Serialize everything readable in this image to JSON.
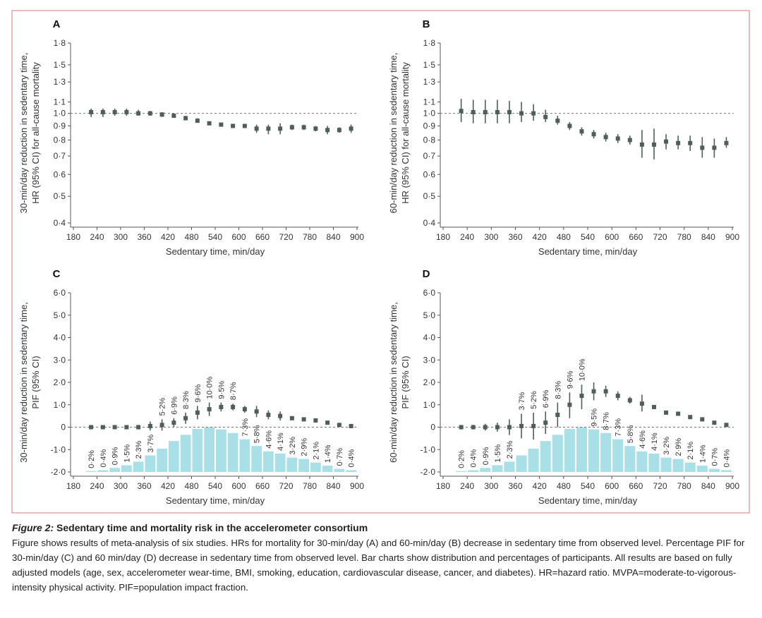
{
  "chart_data": [
    {
      "type": "errorbar",
      "title": "A",
      "xlabel": "Sedentary time, min/day",
      "ylabel": [
        "30-min/day reduction in sedentary time,",
        "HR (95% CI) for all-cause mortality"
      ],
      "x": [
        225,
        255,
        285,
        315,
        345,
        375,
        405,
        435,
        465,
        495,
        525,
        555,
        585,
        615,
        645,
        675,
        705,
        735,
        765,
        795,
        825,
        855,
        885
      ],
      "series": [
        {
          "color": "#4f5e5a",
          "values": [
            1.01,
            1.01,
            1.01,
            1.01,
            1.0,
            1.0,
            0.99,
            0.98,
            0.96,
            0.94,
            0.92,
            0.91,
            0.9,
            0.9,
            0.88,
            0.88,
            0.88,
            0.89,
            0.89,
            0.88,
            0.87,
            0.87,
            0.88
          ],
          "lower": [
            0.97,
            0.97,
            0.98,
            0.98,
            0.98,
            0.98,
            0.97,
            0.97,
            0.95,
            0.93,
            0.91,
            0.9,
            0.89,
            0.89,
            0.85,
            0.84,
            0.84,
            0.87,
            0.87,
            0.86,
            0.84,
            0.85,
            0.85
          ],
          "upper": [
            1.04,
            1.04,
            1.04,
            1.04,
            1.03,
            1.02,
            1.01,
            1.0,
            0.98,
            0.96,
            0.93,
            0.92,
            0.91,
            0.91,
            0.91,
            0.91,
            0.92,
            0.91,
            0.91,
            0.9,
            0.9,
            0.89,
            0.91
          ]
        }
      ],
      "xlim": [
        180,
        900
      ],
      "xticks": [
        180,
        240,
        300,
        360,
        420,
        480,
        540,
        600,
        660,
        720,
        780,
        840,
        900
      ],
      "ylim": [
        0.4,
        1.8
      ],
      "log_y": true,
      "reference_line": 1,
      "yticks": [
        {
          "value": 0.4,
          "label": "0·4"
        },
        {
          "value": 0.5,
          "label": "0·5"
        },
        {
          "value": 0.6,
          "label": "0·6"
        },
        {
          "value": 0.7,
          "label": "0·7"
        },
        {
          "value": 0.8,
          "label": "0·8"
        },
        {
          "value": 0.9,
          "label": "0·9"
        },
        {
          "value": 1,
          "label": "1·0"
        },
        {
          "value": 1.1,
          "label": "1·1"
        },
        {
          "value": 1.3,
          "label": "1·3"
        },
        {
          "value": 1.5,
          "label": "1·5"
        },
        {
          "value": 1.8,
          "label": "1·8"
        }
      ]
    },
    {
      "type": "errorbar",
      "title": "B",
      "xlabel": "Sedentary time, min/day",
      "ylabel": [
        "60-min/day reduction in sedentary time,",
        "HR (95% CI) for all-cause mortality"
      ],
      "x": [
        225,
        255,
        285,
        315,
        345,
        375,
        405,
        435,
        465,
        495,
        525,
        555,
        585,
        615,
        645,
        675,
        705,
        735,
        765,
        795,
        825,
        855,
        885
      ],
      "series": [
        {
          "color": "#4f5e5a",
          "values": [
            1.02,
            1.01,
            1.01,
            1.01,
            1.01,
            1.0,
            1.0,
            0.97,
            0.94,
            0.9,
            0.86,
            0.84,
            0.82,
            0.81,
            0.8,
            0.77,
            0.77,
            0.79,
            0.78,
            0.78,
            0.75,
            0.75,
            0.78
          ],
          "lower": [
            0.93,
            0.92,
            0.92,
            0.92,
            0.92,
            0.93,
            0.94,
            0.93,
            0.91,
            0.87,
            0.83,
            0.81,
            0.79,
            0.78,
            0.77,
            0.69,
            0.68,
            0.74,
            0.74,
            0.73,
            0.69,
            0.69,
            0.75
          ],
          "upper": [
            1.13,
            1.12,
            1.12,
            1.12,
            1.11,
            1.1,
            1.08,
            1.03,
            0.98,
            0.93,
            0.89,
            0.87,
            0.85,
            0.84,
            0.83,
            0.87,
            0.88,
            0.84,
            0.83,
            0.83,
            0.82,
            0.81,
            0.82
          ]
        }
      ],
      "xlim": [
        180,
        900
      ],
      "xticks": [
        180,
        240,
        300,
        360,
        420,
        480,
        540,
        600,
        660,
        720,
        780,
        840,
        900
      ],
      "ylim": [
        0.4,
        1.8
      ],
      "log_y": true,
      "reference_line": 1,
      "yticks": [
        {
          "value": 0.4,
          "label": "0·4"
        },
        {
          "value": 0.5,
          "label": "0·5"
        },
        {
          "value": 0.6,
          "label": "0·6"
        },
        {
          "value": 0.7,
          "label": "0·7"
        },
        {
          "value": 0.8,
          "label": "0·8"
        },
        {
          "value": 0.9,
          "label": "0·9"
        },
        {
          "value": 1,
          "label": "1·0"
        },
        {
          "value": 1.1,
          "label": "1·1"
        },
        {
          "value": 1.3,
          "label": "1·3"
        },
        {
          "value": 1.5,
          "label": "1·5"
        },
        {
          "value": 1.8,
          "label": "1·8"
        }
      ]
    },
    {
      "type": "combo",
      "title": "C",
      "xlabel": "Sedentary time, min/day",
      "ylabel": [
        "30-min/day reduction in sedentary time,",
        "PIF (95% CI)"
      ],
      "x": [
        225,
        255,
        285,
        315,
        345,
        375,
        405,
        435,
        465,
        495,
        525,
        555,
        585,
        615,
        645,
        675,
        705,
        735,
        765,
        795,
        825,
        855,
        885
      ],
      "series": [
        {
          "color": "#4f5e5a",
          "values": [
            0,
            0,
            0,
            0,
            0,
            0.05,
            0.1,
            0.2,
            0.4,
            0.65,
            0.8,
            0.9,
            0.9,
            0.8,
            0.7,
            0.55,
            0.5,
            0.4,
            0.35,
            0.3,
            0.2,
            0.1,
            0.05
          ],
          "lower": [
            -0.05,
            -0.05,
            -0.05,
            -0.05,
            -0.1,
            -0.15,
            -0.15,
            0,
            0.15,
            0.35,
            0.5,
            0.7,
            0.75,
            0.65,
            0.45,
            0.35,
            0.3,
            0.35,
            0.3,
            0.25,
            0.15,
            0.05,
            0
          ],
          "upper": [
            0.05,
            0.05,
            0.05,
            0.05,
            0.1,
            0.25,
            0.35,
            0.4,
            0.65,
            0.95,
            1.1,
            1.1,
            1.05,
            0.95,
            0.95,
            0.75,
            0.7,
            0.45,
            0.4,
            0.35,
            0.25,
            0.15,
            0.1
          ]
        }
      ],
      "bars": {
        "color": "#a9dfe7",
        "axis": "y2",
        "values": [
          0.2,
          0.4,
          0.9,
          1.5,
          2.3,
          3.7,
          5.2,
          6.9,
          8.3,
          9.6,
          10.0,
          9.5,
          8.7,
          7.3,
          5.8,
          4.6,
          4.1,
          3.2,
          2.9,
          2.1,
          1.4,
          0.7,
          0.4
        ],
        "value_labels": [
          "0·2%",
          "0·4%",
          "0·9%",
          "1·5%",
          "2·3%",
          "3·7%",
          "5·2%",
          "6·9%",
          "8·3%",
          "9·6%",
          "10·0%",
          "9·5%",
          "8·7%",
          "7·3%",
          "5·8%",
          "4·6%",
          "4·1%",
          "3·2%",
          "2·9%",
          "2·1%",
          "1·4%",
          "0·7%",
          "0·4%"
        ]
      },
      "y2lim": [
        0,
        40
      ],
      "xlim": [
        180,
        900
      ],
      "xticks": [
        180,
        240,
        300,
        360,
        420,
        480,
        540,
        600,
        660,
        720,
        780,
        840,
        900
      ],
      "ylim": [
        -2,
        6
      ],
      "reference_line": 0,
      "yticks": [
        {
          "value": -2,
          "label": "-2·0"
        },
        {
          "value": -1,
          "label": "-1·0"
        },
        0,
        {
          "value": 1,
          "label": "1·0"
        },
        {
          "value": 2,
          "label": "2·0"
        },
        {
          "value": 3,
          "label": "3·0"
        },
        {
          "value": 4,
          "label": "4·0"
        },
        {
          "value": 5,
          "label": "5·0"
        },
        {
          "value": 6,
          "label": "6·0"
        }
      ]
    },
    {
      "type": "combo",
      "title": "D",
      "xlabel": "Sedentary time, min/day",
      "ylabel": [
        "60-min/day reduction in sedentary time,",
        "PIF (95% CI)"
      ],
      "x": [
        225,
        255,
        285,
        315,
        345,
        375,
        405,
        435,
        465,
        495,
        525,
        555,
        585,
        615,
        645,
        675,
        705,
        735,
        765,
        795,
        825,
        855,
        885
      ],
      "series": [
        {
          "color": "#4f5e5a",
          "values": [
            0,
            0,
            0,
            0,
            0,
            0.05,
            0.05,
            0.2,
            0.55,
            1.0,
            1.4,
            1.6,
            1.6,
            1.4,
            1.2,
            1.05,
            0.9,
            0.65,
            0.6,
            0.45,
            0.35,
            0.2,
            0.1
          ],
          "lower": [
            -0.1,
            -0.1,
            -0.15,
            -0.2,
            -0.35,
            -0.5,
            -0.55,
            -0.3,
            0,
            0.4,
            0.8,
            1.2,
            1.35,
            1.2,
            1.05,
            0.7,
            0.85,
            0.6,
            0.55,
            0.4,
            0.3,
            0.15,
            0.05
          ],
          "upper": [
            0.1,
            0.1,
            0.15,
            0.2,
            0.35,
            0.6,
            0.65,
            0.7,
            1.1,
            1.55,
            1.9,
            2.0,
            1.85,
            1.6,
            1.35,
            1.45,
            0.95,
            0.7,
            0.65,
            0.5,
            0.4,
            0.25,
            0.15
          ]
        }
      ],
      "bars": {
        "color": "#a9dfe7",
        "axis": "y2",
        "values": [
          0.2,
          0.4,
          0.9,
          1.5,
          2.3,
          3.7,
          5.2,
          6.9,
          8.3,
          9.6,
          10.0,
          9.5,
          8.7,
          7.3,
          5.8,
          4.6,
          4.1,
          3.2,
          2.9,
          2.1,
          1.4,
          0.7,
          0.4
        ],
        "value_labels": [
          "0·2%",
          "0·4%",
          "0·9%",
          "1·5%",
          "2·3%",
          "3·7%",
          "5·2%",
          "6·9%",
          "8·3%",
          "9·6%",
          "10·0%",
          "9·5%",
          "8·7%",
          "7·3%",
          "5·8%",
          "4·6%",
          "4·1%",
          "3·2%",
          "2·9%",
          "2·1%",
          "1·4%",
          "0·7%",
          "0·4%"
        ]
      },
      "y2lim": [
        0,
        40
      ],
      "xlim": [
        180,
        900
      ],
      "xticks": [
        180,
        240,
        300,
        360,
        420,
        480,
        540,
        600,
        660,
        720,
        780,
        840,
        900
      ],
      "ylim": [
        -2,
        6
      ],
      "reference_line": 0,
      "yticks": [
        {
          "value": -2,
          "label": "-2·0"
        },
        {
          "value": -1,
          "label": "-1·0"
        },
        0,
        {
          "value": 1,
          "label": "1·0"
        },
        {
          "value": 2,
          "label": "2·0"
        },
        {
          "value": 3,
          "label": "3·0"
        },
        {
          "value": 4,
          "label": "4·0"
        },
        {
          "value": 5,
          "label": "5·0"
        },
        {
          "value": 6,
          "label": "6·0"
        }
      ]
    }
  ],
  "caption": {
    "label": "Figure 2:",
    "title": "Sedentary time and mortality risk in the accelerometer consortium",
    "text": "Figure shows results of meta-analysis of six studies. HRs for mortality for 30-min/day (A) and 60-min/day (B) decrease in sedentary time from observed level. Percentage PIF for 30-min/day (C) and 60 min/day (D) decrease in sedentary time from observed level. Bar charts show distribution and percentages of participants. All results are based on fully adjusted models (age, sex, accelerometer wear-time, BMI, smoking, education, cardiovascular disease, cancer, and diabetes). HR=hazard ratio. MVPA=moderate-to-vigorous-intensity physical activity. PIF=population impact fraction."
  }
}
